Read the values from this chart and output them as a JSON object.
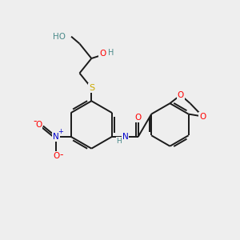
{
  "bg_color": "#eeeeee",
  "bond_color": "#1a1a1a",
  "atom_colors": {
    "O": "#ff0000",
    "N": "#0000cc",
    "S": "#ccaa00",
    "H": "#4a8a8a",
    "C": "#1a1a1a"
  }
}
